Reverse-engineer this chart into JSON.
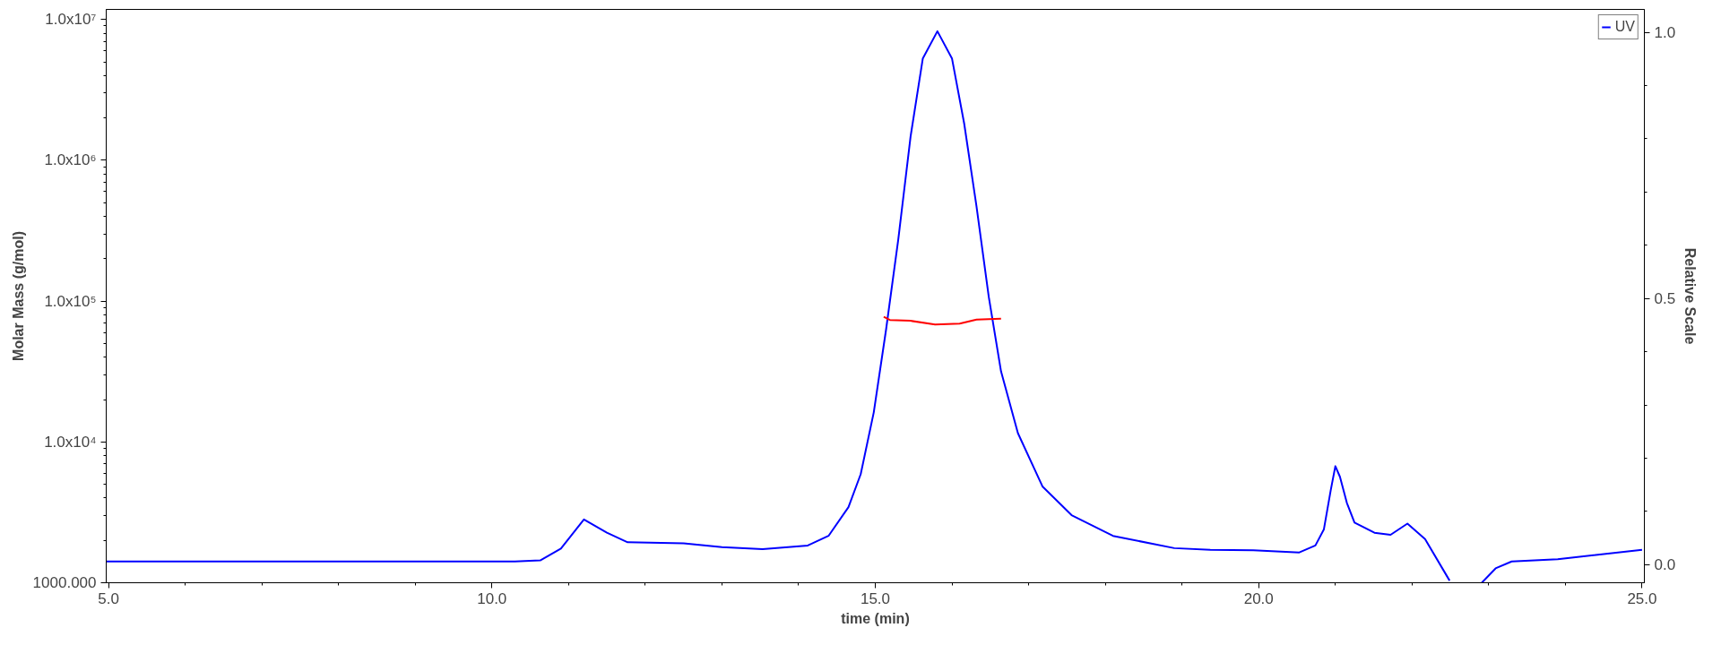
{
  "chart_data": {
    "type": "line",
    "xlabel": "time (min)",
    "ylabel": "Molar Mass (g/mol)",
    "y2label": "Relative Scale",
    "log": "y",
    "grid": false,
    "legend": "top right",
    "line_style": "solid",
    "marker": "none",
    "xlim": [
      4.97,
      25.03
    ],
    "ylim": [
      1000,
      11800000
    ],
    "y2lim": [
      -0.034,
      1.043
    ],
    "xticks": [
      {
        "value": 5,
        "label": "5.0"
      },
      {
        "value": 10,
        "label": "10.0"
      },
      {
        "value": 15,
        "label": "15.0"
      },
      {
        "value": 20,
        "label": "20.0"
      },
      {
        "value": 25,
        "label": "25.0"
      }
    ],
    "yticks": [
      {
        "value": 1000,
        "label": "1000.000"
      },
      {
        "value": 10000,
        "label": "1.0x10⁴"
      },
      {
        "value": 100000,
        "label": "1.0x10⁵"
      },
      {
        "value": 1000000,
        "label": "1.0x10⁶"
      },
      {
        "value": 10000000,
        "label": "1.0x10⁷"
      }
    ],
    "y2ticks": [
      {
        "value": 0,
        "label": "0.0"
      },
      {
        "value": 0.5,
        "label": "0.5"
      },
      {
        "value": 1,
        "label": "1.0"
      }
    ],
    "series": [
      {
        "name": "UV",
        "color": "#0000ff",
        "axis": "y2",
        "x": [
          4.97,
          8.0,
          10.3,
          10.63,
          10.9,
          11.2,
          11.5,
          11.77,
          12.5,
          13.0,
          13.53,
          14.12,
          14.39,
          14.65,
          14.81,
          14.98,
          15.14,
          15.3,
          15.46,
          15.62,
          15.81,
          16.0,
          16.16,
          16.32,
          16.48,
          16.64,
          16.86,
          17.18,
          17.56,
          18.1,
          18.9,
          19.37,
          19.93,
          20.53,
          20.74,
          20.85,
          20.94,
          21.0,
          21.06,
          21.15,
          21.25,
          21.51,
          21.72,
          21.94,
          22.17,
          22.49,
          22.7,
          22.91,
          23.09,
          23.3,
          23.9,
          25.0
        ],
        "values": [
          0.006,
          0.006,
          0.006,
          0.008,
          0.03,
          0.085,
          0.06,
          0.042,
          0.04,
          0.033,
          0.029,
          0.036,
          0.054,
          0.108,
          0.17,
          0.286,
          0.441,
          0.611,
          0.804,
          0.951,
          1.002,
          0.951,
          0.828,
          0.673,
          0.503,
          0.363,
          0.247,
          0.147,
          0.093,
          0.054,
          0.031,
          0.028,
          0.027,
          0.023,
          0.036,
          0.066,
          0.14,
          0.185,
          0.165,
          0.116,
          0.079,
          0.06,
          0.056,
          0.077,
          0.048,
          -0.03,
          null,
          -0.034,
          -0.007,
          0.006,
          0.01,
          0.028
        ]
      },
      {
        "color": "#ff0000",
        "x": [
          15.11,
          15.19,
          15.46,
          15.78,
          16.1,
          16.32,
          16.64
        ],
        "values": [
          77500,
          73500,
          72500,
          68300,
          69200,
          73900,
          75000
        ]
      }
    ]
  }
}
